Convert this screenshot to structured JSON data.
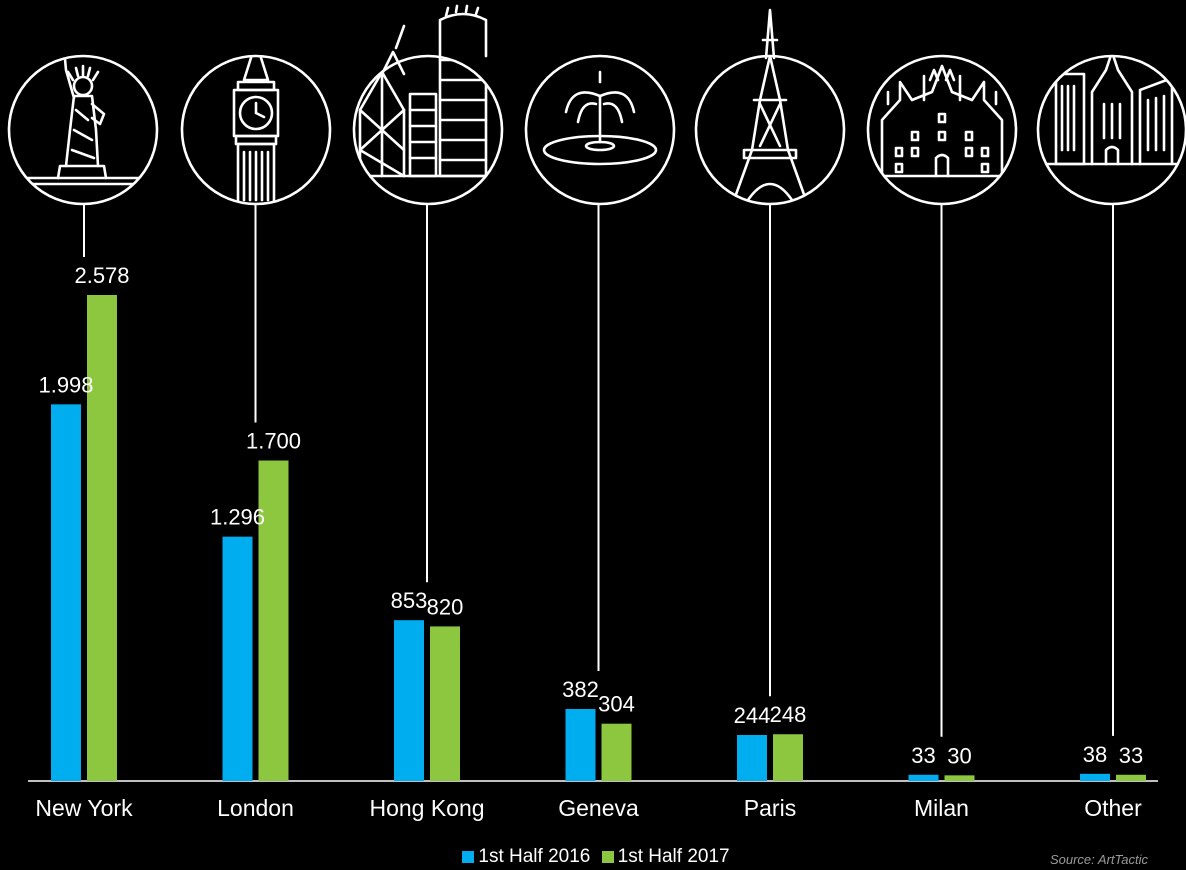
{
  "chart_data": {
    "type": "bar",
    "categories": [
      "New York",
      "London",
      "Hong Kong",
      "Geneva",
      "Paris",
      "Milan",
      "Other"
    ],
    "series": [
      {
        "name": "1st Half 2016",
        "color": "#00aeef",
        "values": [
          1998,
          1296,
          853,
          382,
          244,
          33,
          38
        ],
        "labels": [
          "1.998",
          "1.296",
          "853",
          "382",
          "244",
          "33",
          "38"
        ]
      },
      {
        "name": "1st Half 2017",
        "color": "#8dc63f",
        "values": [
          2578,
          1700,
          820,
          304,
          248,
          30,
          33
        ],
        "labels": [
          "2.578",
          "1.700",
          "820",
          "304",
          "248",
          "30",
          "33"
        ]
      }
    ],
    "icons": [
      "statue-of-liberty-icon",
      "big-ben-icon",
      "hong-kong-skyline-icon",
      "fountain-icon",
      "eiffel-tower-icon",
      "milan-cathedral-icon",
      "skyscrapers-icon"
    ],
    "ylim": [
      0,
      2578
    ],
    "grid": false,
    "legend_position": "bottom-center",
    "source": "Source: ArtTactic"
  },
  "colors": {
    "background": "#000000",
    "text": "#ffffff",
    "source": "#9a9a9a"
  }
}
